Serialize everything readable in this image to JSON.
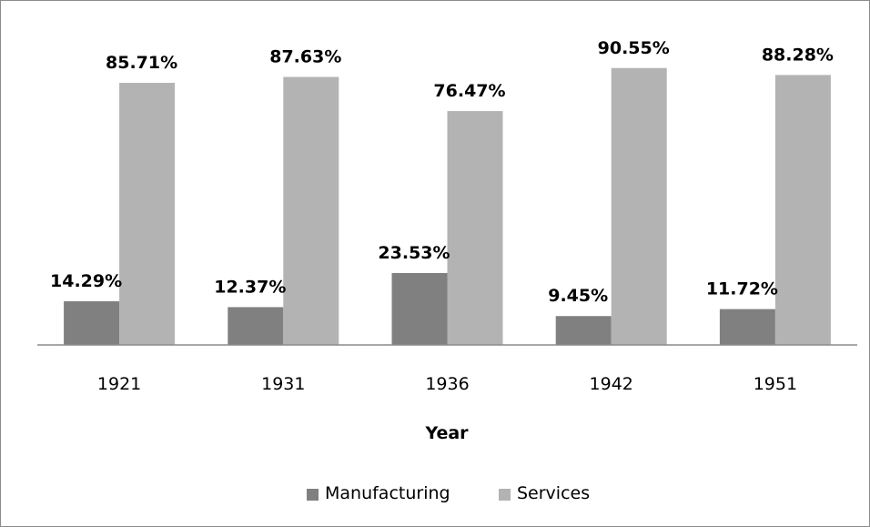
{
  "chart_data": {
    "type": "bar",
    "categories": [
      "1921",
      "1931",
      "1936",
      "1942",
      "1951"
    ],
    "series": [
      {
        "name": "Manufacturing",
        "color": "#808080",
        "values": [
          14.29,
          12.37,
          23.53,
          9.45,
          11.72
        ],
        "labels": [
          "14.29%",
          "12.37%",
          "23.53%",
          "9.45%",
          "11.72%"
        ]
      },
      {
        "name": "Services",
        "color": "#b3b3b3",
        "values": [
          85.71,
          87.63,
          76.47,
          90.55,
          88.28
        ],
        "labels": [
          "85.71%",
          "87.63%",
          "76.47%",
          "90.55%",
          "88.28%"
        ]
      }
    ],
    "xlabel": "Year",
    "ylabel": "",
    "ylim": [
      0,
      100
    ],
    "grid": false,
    "legend_position": "bottom"
  }
}
